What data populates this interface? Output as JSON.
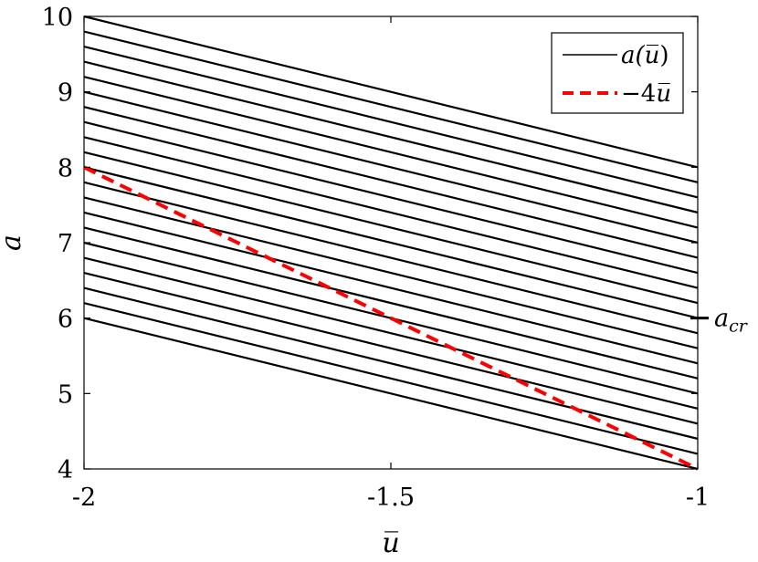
{
  "chart_data": {
    "type": "line",
    "xlabel": "u̅",
    "ylabel": "a",
    "xlim": [
      -2,
      -1
    ],
    "ylim": [
      4,
      10
    ],
    "xticks": [
      -2,
      -1.5,
      -1
    ],
    "xtick_labels": [
      "-2",
      "-1.5",
      "-1"
    ],
    "yticks": [
      4,
      5,
      6,
      7,
      8,
      9,
      10
    ],
    "ytick_labels": [
      "4",
      "5",
      "6",
      "7",
      "8",
      "9",
      "10"
    ],
    "grid": false,
    "legend_position": "top-right",
    "legend": [
      {
        "label_main": "a(",
        "label_var": "u̅",
        "label_end": ")",
        "style": "solid",
        "color": "#000000"
      },
      {
        "label_main": "−4",
        "label_var": "u̅",
        "label_end": "",
        "style": "dashed",
        "color": "#ff0000"
      }
    ],
    "series": [
      {
        "name": "a(u̅)",
        "style": "solid",
        "color": "#000000",
        "lines": [
          {
            "x": [
              -2,
              -1
            ],
            "y": [
              6.0,
              4.0
            ]
          },
          {
            "x": [
              -2,
              -1
            ],
            "y": [
              6.2,
              4.2
            ]
          },
          {
            "x": [
              -2,
              -1
            ],
            "y": [
              6.4,
              4.4
            ]
          },
          {
            "x": [
              -2,
              -1
            ],
            "y": [
              6.6,
              4.6
            ]
          },
          {
            "x": [
              -2,
              -1
            ],
            "y": [
              6.8,
              4.8
            ]
          },
          {
            "x": [
              -2,
              -1
            ],
            "y": [
              7.0,
              5.0
            ]
          },
          {
            "x": [
              -2,
              -1
            ],
            "y": [
              7.2,
              5.2
            ]
          },
          {
            "x": [
              -2,
              -1
            ],
            "y": [
              7.4,
              5.4
            ]
          },
          {
            "x": [
              -2,
              -1
            ],
            "y": [
              7.6,
              5.6
            ]
          },
          {
            "x": [
              -2,
              -1
            ],
            "y": [
              7.8,
              5.8
            ]
          },
          {
            "x": [
              -2,
              -1
            ],
            "y": [
              8.0,
              6.0
            ]
          },
          {
            "x": [
              -2,
              -1
            ],
            "y": [
              8.2,
              6.2
            ]
          },
          {
            "x": [
              -2,
              -1
            ],
            "y": [
              8.4,
              6.4
            ]
          },
          {
            "x": [
              -2,
              -1
            ],
            "y": [
              8.6,
              6.6
            ]
          },
          {
            "x": [
              -2,
              -1
            ],
            "y": [
              8.8,
              6.8
            ]
          },
          {
            "x": [
              -2,
              -1
            ],
            "y": [
              9.0,
              7.0
            ]
          },
          {
            "x": [
              -2,
              -1
            ],
            "y": [
              9.2,
              7.2
            ]
          },
          {
            "x": [
              -2,
              -1
            ],
            "y": [
              9.4,
              7.4
            ]
          },
          {
            "x": [
              -2,
              -1
            ],
            "y": [
              9.6,
              7.6
            ]
          },
          {
            "x": [
              -2,
              -1
            ],
            "y": [
              9.8,
              7.8
            ]
          },
          {
            "x": [
              -2,
              -1
            ],
            "y": [
              10.0,
              8.0
            ]
          }
        ]
      },
      {
        "name": "−4u̅",
        "style": "dashed",
        "color": "#ff0000",
        "lines": [
          {
            "x": [
              -2,
              -1
            ],
            "y": [
              8.0,
              4.0
            ]
          }
        ]
      }
    ],
    "annotations": [
      {
        "text_main": "a",
        "text_sub": "cr",
        "y": 6
      }
    ]
  }
}
